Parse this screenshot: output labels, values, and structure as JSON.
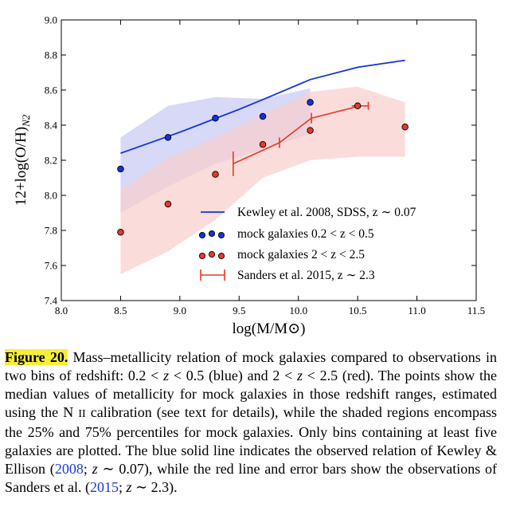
{
  "chart_data": {
    "type": "scatter",
    "title": "",
    "xlabel": "log(M/M⊙)",
    "ylabel": "12+log(O/H)N2",
    "ylabel_main": "12+log(O/H)",
    "ylabel_sub": "N2",
    "xlim": [
      8.0,
      11.5
    ],
    "ylim": [
      7.4,
      9.0
    ],
    "x_ticks": [
      "8.0",
      "8.5",
      "9.0",
      "9.5",
      "10.0",
      "10.5",
      "11.0",
      "11.5"
    ],
    "y_ticks": [
      "7.4",
      "7.6",
      "7.8",
      "8.0",
      "8.2",
      "8.4",
      "8.6",
      "8.8",
      "9.0"
    ],
    "grid": false,
    "legend_position": "lower-right",
    "colors": {
      "blue": "#1133dd",
      "red": "#e8382a",
      "blue_band": "#c8c8f4",
      "red_band": "#f8cfcc"
    },
    "series": [
      {
        "name": "Kewley et al. 2008, SDSS, z ∼ 0.07",
        "kind": "line",
        "x": [
          8.5,
          9.0,
          9.5,
          9.75,
          10.1,
          10.5,
          10.9
        ],
        "y": [
          8.24,
          8.36,
          8.49,
          8.56,
          8.66,
          8.73,
          8.77
        ]
      },
      {
        "name": "mock galaxies 0.2 < z < 0.5",
        "kind": "points",
        "x": [
          8.5,
          8.9,
          9.3,
          9.7,
          10.1
        ],
        "y": [
          8.15,
          8.33,
          8.44,
          8.45,
          8.53
        ],
        "band_lower": [
          7.9,
          8.05,
          8.18,
          8.26,
          8.35
        ],
        "band_upper": [
          8.33,
          8.51,
          8.56,
          8.55,
          8.61
        ]
      },
      {
        "name": "mock galaxies 2 < z < 2.5",
        "kind": "points",
        "x": [
          8.5,
          8.9,
          9.3,
          9.7,
          10.1,
          10.5,
          10.9
        ],
        "y": [
          7.79,
          7.95,
          8.12,
          8.29,
          8.37,
          8.51,
          8.39
        ],
        "band_lower": [
          7.55,
          7.68,
          7.86,
          8.1,
          8.2,
          8.22,
          8.22
        ],
        "band_upper": [
          8.03,
          8.21,
          8.33,
          8.46,
          8.59,
          8.62,
          8.53
        ]
      },
      {
        "name": "Sanders et al. 2015, z ∼ 2.3",
        "kind": "errorbar",
        "x": [
          9.45,
          9.84,
          10.11,
          10.52
        ],
        "y": [
          8.18,
          8.3,
          8.44,
          8.51
        ],
        "yerr": [
          0.07,
          0.03,
          0.03,
          0.01
        ],
        "xerr": [
          0.0,
          0.0,
          0.0,
          0.07
        ]
      }
    ],
    "legend_entries": [
      "Kewley et al. 2008, SDSS, z ∼ 0.07",
      "mock galaxies 0.2 < z < 0.5",
      "mock galaxies 2 < z < 2.5",
      "Sanders et al. 2015, z ∼ 2.3"
    ]
  },
  "caption": {
    "label": "Figure 20.",
    "text_1": " Mass–metallicity relation of mock galaxies compared to observations in two bins of redshift: 0.2 < ",
    "z1": "z",
    "text_2": " < 0.5 (blue) and 2 < ",
    "z2": "z",
    "text_3": " < 2.5 (red). The points show the median values of metallicity for mock galaxies in those redshift ranges, estimated using the N ",
    "smallcaps": "II",
    "text_4": " calibration (see text for details), while the shaded regions encompass the 25% and 75% percentiles for mock galaxies. Only bins containing at least five galaxies are plotted. The blue solid line indicates the observed relation of Kewley & Ellison (",
    "ref_1": "2008",
    "text_5": "; ",
    "z3": "z",
    "text_6": " ∼ 0.07), while the red line and error bars show the observations of Sanders et al. (",
    "ref_2": "2015",
    "text_7": "; ",
    "z4": "z",
    "text_8": " ∼ 2.3)."
  }
}
